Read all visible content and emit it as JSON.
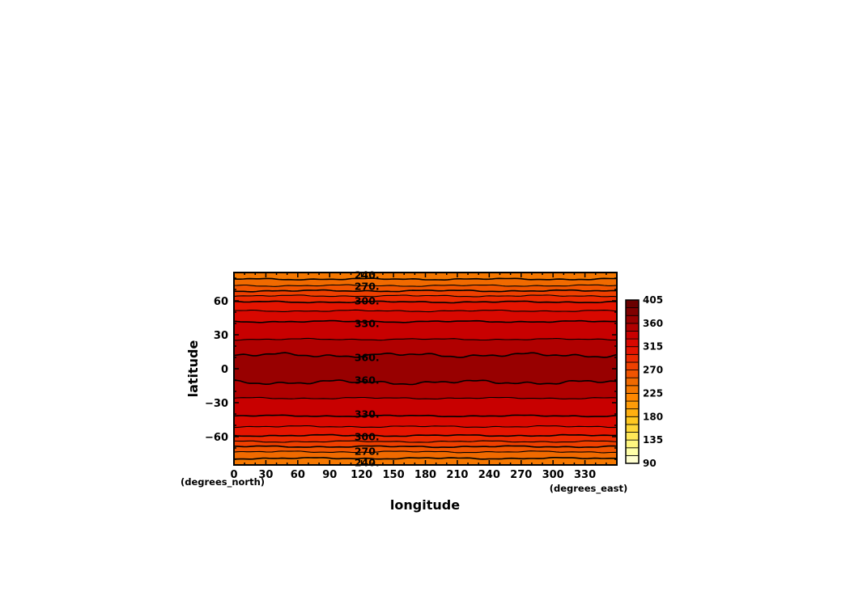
{
  "chart_data": {
    "type": "heatmap",
    "subtype": "filled-contour",
    "title": "",
    "xlabel": "longitude",
    "ylabel": "latitude",
    "x_units": "(degrees_east)",
    "y_units": "(degrees_north)",
    "xlim": [
      0,
      360
    ],
    "ylim": [
      -85,
      85
    ],
    "x_ticks": [
      0,
      30,
      60,
      90,
      120,
      150,
      180,
      210,
      240,
      270,
      300,
      330
    ],
    "y_ticks": [
      -60,
      -30,
      0,
      30,
      60
    ],
    "contour_levels": [
      90,
      105,
      120,
      135,
      150,
      165,
      180,
      195,
      210,
      225,
      240,
      255,
      270,
      285,
      300,
      315,
      330,
      345,
      360,
      375,
      390,
      405
    ],
    "colorbar": {
      "tick_labels": [
        "90",
        "135",
        "180",
        "225",
        "270",
        "315",
        "360",
        "405"
      ],
      "colors": [
        "#ffffd0",
        "#ffffa8",
        "#fff780",
        "#ffe858",
        "#ffd838",
        "#ffc820",
        "#ffb010",
        "#ff9c08",
        "#ff8800",
        "#f57800",
        "#f06a00",
        "#f05400",
        "#ee4000",
        "#ec2a00",
        "#e41400",
        "#d80800",
        "#c80000",
        "#b00000",
        "#980000",
        "#800000",
        "#6a0000"
      ]
    },
    "latitude_profile": {
      "latitude": [
        -85,
        -80,
        -75,
        -70,
        -65,
        -60,
        -55,
        -50,
        -45,
        -40,
        -35,
        -30,
        -25,
        -20,
        -15,
        -10,
        -5,
        0,
        5,
        10,
        15,
        20,
        25,
        30,
        35,
        40,
        45,
        50,
        55,
        60,
        65,
        70,
        75,
        80,
        85
      ],
      "value": [
        228,
        238,
        250,
        266,
        283,
        298,
        308,
        317,
        326,
        332,
        336,
        341,
        346,
        352,
        357,
        362,
        367,
        370,
        367,
        362,
        357,
        352,
        346,
        341,
        336,
        332,
        326,
        317,
        308,
        298,
        283,
        266,
        250,
        238,
        228
      ]
    },
    "labeled_contours": [
      {
        "text": "240.",
        "lat": -83
      },
      {
        "text": "270.",
        "lat": -73
      },
      {
        "text": "300.",
        "lat": -60
      },
      {
        "text": "330.",
        "lat": -40
      },
      {
        "text": "360.",
        "lat": -10
      },
      {
        "text": "360.",
        "lat": 10
      },
      {
        "text": "330.",
        "lat": 40
      },
      {
        "text": "300.",
        "lat": 60
      },
      {
        "text": "270.",
        "lat": 73
      },
      {
        "text": "240.",
        "lat": 83
      }
    ],
    "legend": "right"
  }
}
